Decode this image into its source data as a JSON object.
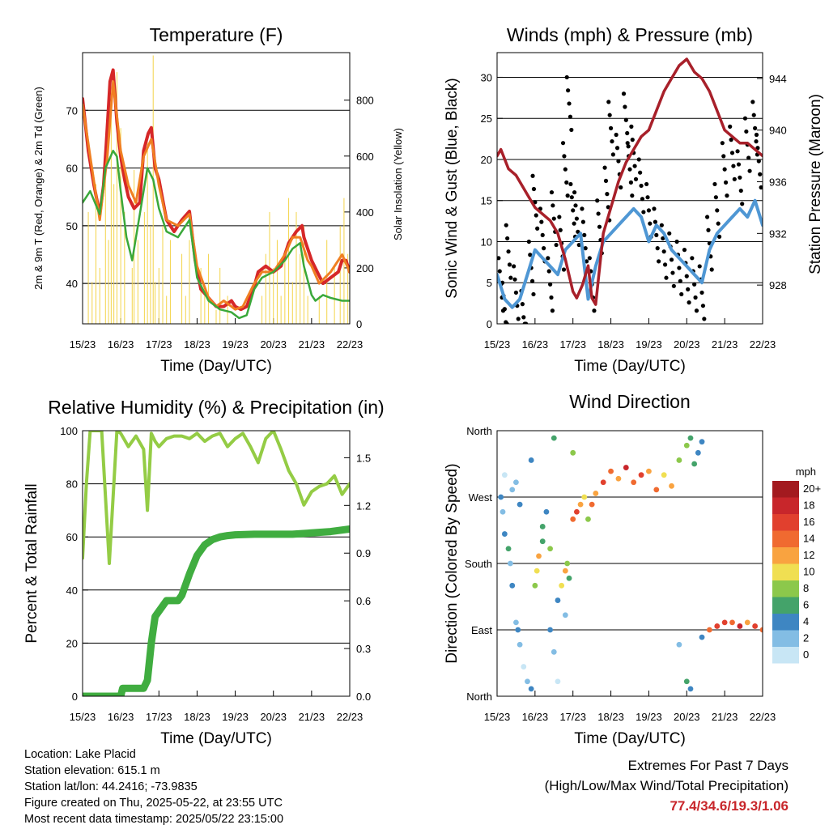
{
  "chart_data": [
    {
      "type": "line",
      "title": "Temperature (F)",
      "xlabel": "Time (Day/UTC)",
      "ylabel": "2m & 9m T (Red, Orange) & 2m Td (Green)",
      "y2label": "Solar Insolation (Yellow)",
      "xticks": [
        "15/23",
        "16/23",
        "17/23",
        "18/23",
        "19/23",
        "20/23",
        "21/23",
        "22/23"
      ],
      "xlim": [
        0,
        7
      ],
      "ylim": [
        33,
        80
      ],
      "yticks": [
        40,
        50,
        60,
        70
      ],
      "y2lim": [
        0,
        970
      ],
      "y2ticks": [
        0,
        200,
        400,
        600,
        800
      ],
      "grid": true,
      "series": [
        {
          "color": "#d62728",
          "width": 4,
          "x": [
            0,
            0.15,
            0.3,
            0.45,
            0.55,
            0.62,
            0.72,
            0.8,
            0.9,
            1.0,
            1.1,
            1.2,
            1.35,
            1.5,
            1.6,
            1.72,
            1.8,
            1.9,
            2.0,
            2.2,
            2.4,
            2.6,
            2.8,
            2.95,
            3.1,
            3.3,
            3.5,
            3.7,
            3.9,
            4.0,
            4.15,
            4.3,
            4.5,
            4.6,
            4.8,
            5.0,
            5.2,
            5.3,
            5.4,
            5.6,
            5.75,
            5.8,
            5.9,
            6.0,
            6.15,
            6.3,
            6.5,
            6.7,
            6.8,
            6.9,
            7.0
          ],
          "y": [
            72,
            63,
            57,
            52,
            57,
            64,
            75,
            77,
            68,
            62,
            58,
            55,
            53,
            54,
            63,
            66,
            67,
            60,
            58,
            51,
            49,
            51,
            52.5,
            44,
            39,
            37.5,
            36,
            36,
            37,
            36,
            35.5,
            36,
            39.5,
            42,
            43,
            42,
            43,
            45,
            47,
            49,
            50,
            48,
            46,
            44,
            42,
            40,
            41,
            42,
            44,
            44,
            42
          ]
        },
        {
          "color": "#f07f22",
          "width": 3,
          "x": [
            0,
            0.2,
            0.45,
            0.65,
            0.8,
            1.0,
            1.2,
            1.4,
            1.6,
            1.8,
            2.0,
            2.2,
            2.5,
            2.8,
            3.0,
            3.3,
            3.5,
            3.7,
            3.9,
            4.0,
            4.2,
            4.5,
            4.7,
            5.0,
            5.3,
            5.5,
            5.7,
            5.9,
            6.0,
            6.2,
            6.5,
            6.8,
            7.0
          ],
          "y": [
            71,
            62,
            51,
            62,
            75,
            63,
            57,
            54,
            62,
            65,
            57,
            51,
            50,
            52,
            43,
            37.5,
            36,
            37,
            36,
            35.5,
            36,
            40,
            42,
            42,
            45,
            48,
            48,
            44,
            43,
            40,
            42,
            45,
            42
          ]
        },
        {
          "color": "#3aa83a",
          "width": 2.5,
          "x": [
            0,
            0.2,
            0.45,
            0.6,
            0.8,
            0.9,
            1.0,
            1.15,
            1.3,
            1.5,
            1.7,
            1.85,
            2.0,
            2.2,
            2.5,
            2.8,
            3.0,
            3.3,
            3.6,
            3.9,
            4.1,
            4.3,
            4.5,
            4.7,
            5.0,
            5.3,
            5.5,
            5.7,
            5.8,
            6.0,
            6.1,
            6.3,
            6.5,
            6.8,
            7.0
          ],
          "y": [
            54,
            56,
            52,
            60,
            63,
            62,
            56,
            48,
            44,
            52,
            60,
            58,
            53,
            49,
            48,
            51,
            41,
            37,
            35.5,
            35,
            34,
            34.5,
            39,
            41,
            42,
            44,
            46,
            47,
            43,
            38,
            37,
            38,
            37.5,
            37,
            37
          ]
        }
      ],
      "insolation": {
        "color": "#f3d44a",
        "width": 1,
        "x": [
          0.05,
          0.15,
          0.25,
          0.35,
          0.45,
          0.5,
          0.6,
          0.68,
          0.75,
          0.82,
          0.9,
          1.0,
          1.1,
          1.2,
          1.3,
          1.35,
          1.45,
          1.55,
          1.62,
          1.7,
          1.78,
          1.85,
          1.9,
          2.0,
          2.1,
          2.2,
          2.3,
          2.4,
          2.6,
          2.7,
          2.8,
          2.9,
          3.0,
          3.1,
          3.2,
          3.3,
          3.4,
          3.5,
          3.6,
          3.7,
          3.8,
          3.9,
          4.0,
          4.2,
          4.4,
          4.6,
          4.7,
          4.8,
          4.9,
          5.0,
          5.1,
          5.2,
          5.3,
          5.4,
          5.5,
          5.6,
          5.7,
          5.8,
          5.9,
          6.0,
          6.2,
          6.4,
          6.6,
          6.75,
          6.85,
          6.95
        ],
        "y": [
          0,
          400,
          150,
          500,
          200,
          0,
          650,
          300,
          820,
          500,
          900,
          700,
          400,
          0,
          200,
          550,
          300,
          0,
          400,
          650,
          350,
          960,
          150,
          200,
          350,
          100,
          300,
          0,
          250,
          100,
          300,
          0,
          0,
          200,
          100,
          250,
          0,
          50,
          200,
          0,
          100,
          0,
          0,
          0,
          0,
          0,
          100,
          250,
          400,
          200,
          300,
          100,
          250,
          450,
          150,
          400,
          250,
          350,
          100,
          0,
          100,
          300,
          200,
          350,
          450,
          250
        ]
      }
    },
    {
      "type": "line",
      "title": "Winds (mph) & Pressure (mb)",
      "xlabel": "Time (Day/UTC)",
      "ylabel": "Sonic Wind & Gust (Blue, Black)",
      "y2label": "Station Pressure (Maroon)",
      "xticks": [
        "15/23",
        "16/23",
        "17/23",
        "18/23",
        "19/23",
        "20/23",
        "21/23",
        "22/23"
      ],
      "xlim": [
        0,
        7
      ],
      "ylim": [
        0,
        33
      ],
      "yticks": [
        0,
        5,
        10,
        15,
        20,
        25,
        30
      ],
      "y2lim": [
        925,
        946
      ],
      "y2ticks": [
        928,
        932,
        936,
        940,
        944
      ],
      "grid": true,
      "wind": {
        "color": "#4f97d4",
        "x": [
          0,
          0.2,
          0.4,
          0.6,
          0.8,
          1.0,
          1.2,
          1.4,
          1.6,
          1.8,
          2.0,
          2.2,
          2.4,
          2.6,
          2.8,
          3.0,
          3.2,
          3.4,
          3.6,
          3.8,
          4.0,
          4.2,
          4.4,
          4.6,
          4.8,
          5.0,
          5.2,
          5.4,
          5.6,
          5.8,
          6.0,
          6.2,
          6.4,
          6.6,
          6.8,
          7.0
        ],
        "y": [
          6,
          3,
          2,
          3,
          6,
          9,
          8,
          7,
          6,
          9,
          10,
          11,
          3,
          7,
          10,
          11,
          12,
          13,
          14,
          13,
          10,
          12,
          11,
          9,
          8,
          7,
          6,
          5,
          9,
          11,
          12,
          13,
          14,
          13,
          15,
          12
        ]
      },
      "gust": {
        "color": "#000000",
        "x": [
          0.1,
          0.2,
          0.3,
          0.5,
          0.7,
          0.9,
          1.0,
          1.2,
          1.4,
          1.5,
          1.7,
          1.8,
          1.9,
          2.0,
          2.1,
          2.3,
          2.5,
          2.7,
          2.9,
          3.0,
          3.2,
          3.4,
          3.5,
          3.6,
          3.8,
          4.0,
          4.2,
          4.4,
          4.6,
          4.8,
          5.0,
          5.2,
          5.4,
          5.6,
          5.8,
          6.0,
          6.2,
          6.4,
          6.6,
          6.8,
          6.9
        ],
        "y": [
          8,
          5,
          12,
          7,
          4,
          10,
          18,
          14,
          8,
          16,
          13,
          22,
          30,
          17,
          16,
          14,
          8,
          15,
          19,
          27,
          23,
          28,
          22,
          24,
          20,
          17,
          14,
          12,
          11,
          10,
          9,
          8,
          7,
          13,
          17,
          22,
          24,
          21,
          25,
          27,
          23
        ]
      },
      "pressure": {
        "color": "#a8202a",
        "width": 3.5,
        "x": [
          0,
          0.1,
          0.3,
          0.5,
          0.8,
          1.0,
          1.2,
          1.4,
          1.6,
          1.8,
          2.0,
          2.1,
          2.25,
          2.4,
          2.5,
          2.6,
          2.8,
          3.0,
          3.2,
          3.4,
          3.6,
          3.8,
          4.0,
          4.2,
          4.4,
          4.6,
          4.8,
          5.0,
          5.2,
          5.4,
          5.6,
          5.8,
          6.0,
          6.2,
          6.4,
          6.6,
          6.8,
          7.0
        ],
        "y": [
          938,
          938.5,
          937,
          936.5,
          935,
          934,
          933.5,
          933,
          932,
          930,
          927.5,
          927,
          928,
          929.5,
          927,
          926.5,
          932,
          934,
          936,
          937.5,
          938.5,
          939.5,
          940,
          941.5,
          943,
          944,
          945,
          945.5,
          944.5,
          944,
          943,
          941.5,
          940,
          939.5,
          939,
          939,
          938.5,
          938
        ]
      }
    },
    {
      "type": "line",
      "title": "Relative Humidity (%) & Precipitation (in)",
      "xlabel": "Time (Day/UTC)",
      "ylabel": "Percent & Total Rainfall",
      "xticks": [
        "15/23",
        "16/23",
        "17/23",
        "18/23",
        "19/23",
        "20/23",
        "21/23",
        "22/23"
      ],
      "xlim": [
        0,
        7
      ],
      "ylim": [
        0,
        100
      ],
      "yticks": [
        0,
        20,
        40,
        60,
        80,
        100
      ],
      "y2lim": [
        0,
        1.67
      ],
      "y2ticks": [
        "0.0",
        "0.3",
        "0.6",
        "0.9",
        "1.2",
        "1.5"
      ],
      "grid": true,
      "series": [
        {
          "color": "#94cc45",
          "width": 4,
          "x": [
            0,
            0.1,
            0.2,
            0.3,
            0.5,
            0.7,
            0.8,
            0.9,
            1.0,
            1.2,
            1.4,
            1.6,
            1.7,
            1.8,
            1.9,
            2.0,
            2.2,
            2.4,
            2.6,
            2.8,
            3.0,
            3.2,
            3.4,
            3.6,
            3.8,
            4.0,
            4.2,
            4.4,
            4.6,
            4.8,
            5.0,
            5.2,
            5.4,
            5.6,
            5.8,
            6.0,
            6.2,
            6.4,
            6.6,
            6.8,
            7.0
          ],
          "y": [
            52,
            80,
            100,
            100,
            100,
            50,
            75,
            100,
            99,
            94,
            98,
            93,
            70,
            99,
            96,
            94,
            97,
            98,
            98,
            97,
            99,
            96,
            98,
            99,
            94,
            97,
            99,
            94,
            88,
            97,
            100,
            93,
            85,
            80,
            72,
            77,
            79,
            80,
            83,
            76,
            80
          ]
        },
        {
          "color": "#40ad40",
          "width": 9,
          "x": [
            0,
            0.5,
            1.0,
            1.05,
            1.6,
            1.7,
            1.8,
            1.9,
            2.0,
            2.2,
            2.5,
            2.6,
            2.8,
            3.0,
            3.2,
            3.4,
            3.6,
            3.8,
            4.0,
            4.5,
            5.0,
            5.5,
            6.0,
            6.5,
            7.0
          ],
          "y": [
            0,
            0,
            0,
            3,
            3,
            6,
            20,
            30,
            32,
            36,
            36,
            38,
            46,
            53,
            57,
            59,
            60,
            60.5,
            60.8,
            61,
            61,
            61,
            61.5,
            62,
            63
          ]
        }
      ]
    },
    {
      "type": "scatter",
      "title": "Wind Direction",
      "xlabel": "Time (Day/UTC)",
      "ylabel": "Direction (Colored By Speed)",
      "xticks": [
        "15/23",
        "16/23",
        "17/23",
        "18/23",
        "19/23",
        "20/23",
        "21/23",
        "22/23"
      ],
      "xlim": [
        0,
        7
      ],
      "ylim": [
        0,
        360
      ],
      "yticks": [
        "North",
        "East",
        "South",
        "West",
        "North"
      ],
      "grid": true,
      "legend": {
        "title": "mph",
        "labels": [
          "20+",
          "18",
          "16",
          "14",
          "12",
          "10",
          "8",
          "6",
          "4",
          "2",
          "0"
        ],
        "colors": [
          "#a31a1f",
          "#c8262b",
          "#e1402e",
          "#f06a30",
          "#f9a340",
          "#f0df52",
          "#8cc84b",
          "#44a36a",
          "#3e86c2",
          "#83bde4",
          "#c8e6f5"
        ],
        "position": "right"
      },
      "points": {
        "x": [
          0.1,
          0.15,
          0.2,
          0.3,
          0.35,
          0.4,
          0.5,
          0.55,
          0.6,
          0.7,
          0.8,
          0.9,
          1.0,
          1.05,
          1.1,
          1.2,
          1.3,
          1.4,
          1.5,
          1.6,
          1.7,
          1.8,
          1.85,
          1.9,
          2.0,
          2.1,
          2.2,
          2.3,
          2.4,
          2.5,
          2.6,
          2.8,
          3.0,
          3.2,
          3.4,
          3.6,
          3.8,
          4.0,
          4.2,
          4.4,
          4.6,
          4.8,
          5.0,
          5.1,
          5.2,
          5.3,
          5.4,
          5.6,
          5.8,
          6.0,
          6.2,
          6.4,
          6.6,
          6.8,
          7.0,
          0.4,
          0.6,
          1.2,
          1.4,
          1.6,
          1.8,
          0.2,
          0.5,
          0.9,
          1.5,
          2.0,
          5.0,
          5.1,
          4.8,
          5.4
        ],
        "y": [
          270,
          250,
          220,
          200,
          180,
          150,
          100,
          90,
          70,
          40,
          20,
          10,
          150,
          170,
          190,
          210,
          250,
          90,
          60,
          20,
          150,
          170,
          180,
          160,
          240,
          250,
          260,
          270,
          240,
          260,
          275,
          290,
          305,
          295,
          310,
          290,
          300,
          305,
          280,
          300,
          285,
          320,
          340,
          350,
          315,
          330,
          345,
          90,
          95,
          100,
          100,
          95,
          100,
          95,
          90,
          280,
          260,
          230,
          200,
          130,
          110,
          300,
          290,
          320,
          350,
          330,
          20,
          10,
          70,
          80
        ],
        "speed": [
          4,
          2,
          4,
          6,
          2,
          4,
          2,
          4,
          2,
          0,
          2,
          4,
          8,
          10,
          12,
          6,
          4,
          4,
          2,
          0,
          10,
          12,
          8,
          6,
          14,
          16,
          12,
          10,
          8,
          14,
          12,
          16,
          14,
          12,
          18,
          14,
          16,
          12,
          14,
          10,
          12,
          8,
          8,
          6,
          6,
          4,
          4,
          14,
          16,
          16,
          14,
          18,
          12,
          16,
          14,
          2,
          4,
          6,
          8,
          4,
          2,
          0,
          2,
          4,
          6,
          8,
          6,
          4,
          2,
          4
        ]
      }
    }
  ],
  "footer": {
    "location": "Location: Lake Placid",
    "elevation": "Station elevation: 615.1 m",
    "latlon": "Station lat/lon: 44.2416; -73.9835",
    "created": "Figure created on Thu, 2025-05-22, at 23:55 UTC",
    "recent": "Most recent data timestamp: 2025/05/22 23:15:00"
  },
  "extremes": {
    "line1": "Extremes For Past 7 Days",
    "line2": "(High/Low/Max Wind/Total Precipitation)",
    "values": "77.4/34.6/19.3/1.06"
  }
}
